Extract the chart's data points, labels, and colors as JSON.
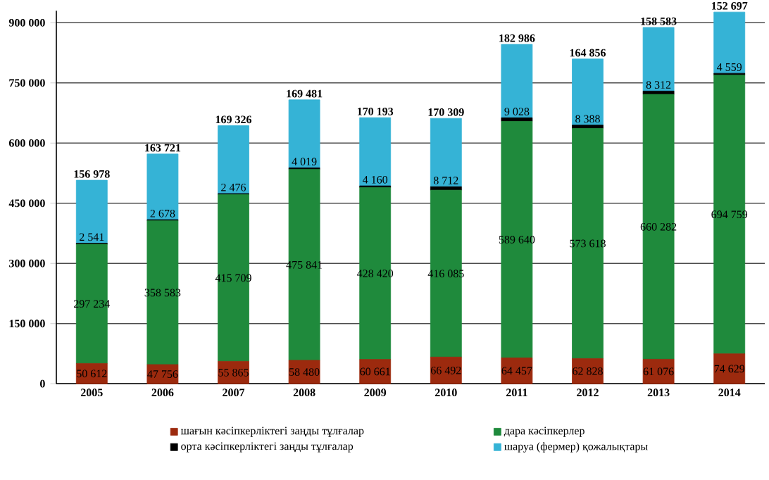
{
  "chart_data": {
    "type": "bar",
    "stacked": true,
    "categories": [
      "2005",
      "2006",
      "2007",
      "2008",
      "2009",
      "2010",
      "2011",
      "2012",
      "2013",
      "2014"
    ],
    "series": [
      {
        "name": "шағын кәсіпкерліктегі заңды тұлғалар",
        "color": "#9c2a0e",
        "values": [
          50612,
          47756,
          55865,
          58480,
          60661,
          66492,
          64457,
          62828,
          61076,
          74629
        ],
        "value_labels": [
          "50 612",
          "47 756",
          "55 865",
          "58 480",
          "60 661",
          "66 492",
          "64 457",
          "62 828",
          "61 076",
          "74 629"
        ]
      },
      {
        "name": "дара кәсіпкерлер",
        "color": "#1f8a3c",
        "values": [
          297234,
          358583,
          415709,
          475841,
          428420,
          416085,
          589640,
          573618,
          660282,
          694759
        ],
        "value_labels": [
          "297 234",
          "358 583",
          "415 709",
          "475 841",
          "428 420",
          "416 085",
          "589 640",
          "573 618",
          "660 282",
          "694 759"
        ]
      },
      {
        "name": "орта кәсіпкерліктегі заңды тұлғалар",
        "color": "#000000",
        "values": [
          2541,
          2678,
          2476,
          4019,
          4160,
          8712,
          9028,
          8388,
          8312,
          4559
        ],
        "value_labels": [
          "2 541",
          "2 678",
          "2 476",
          "4 019",
          "4 160",
          "8 712",
          "9 028",
          "8 388",
          "8 312",
          "4 559"
        ]
      },
      {
        "name": "шаруа (фермер) қожалықтары",
        "color": "#35b3d6",
        "values": [
          156978,
          163721,
          169326,
          169481,
          170193,
          170309,
          182986,
          164856,
          158583,
          152697
        ],
        "value_labels": [
          "156 978",
          "163 721",
          "169 326",
          "169 481",
          "170 193",
          "170 309",
          "182 986",
          "164 856",
          "158 583",
          "152 697"
        ]
      }
    ],
    "ylim": [
      0,
      930000
    ],
    "yticks": [
      {
        "value": 0,
        "label": "0"
      },
      {
        "value": 150000,
        "label": "150 000"
      },
      {
        "value": 300000,
        "label": "300 000"
      },
      {
        "value": 450000,
        "label": "450 000"
      },
      {
        "value": 600000,
        "label": "600 000"
      },
      {
        "value": 750000,
        "label": "750 000"
      },
      {
        "value": 900000,
        "label": "900 000"
      }
    ],
    "grid": "y",
    "legend": "bottom",
    "data_labels": true
  }
}
